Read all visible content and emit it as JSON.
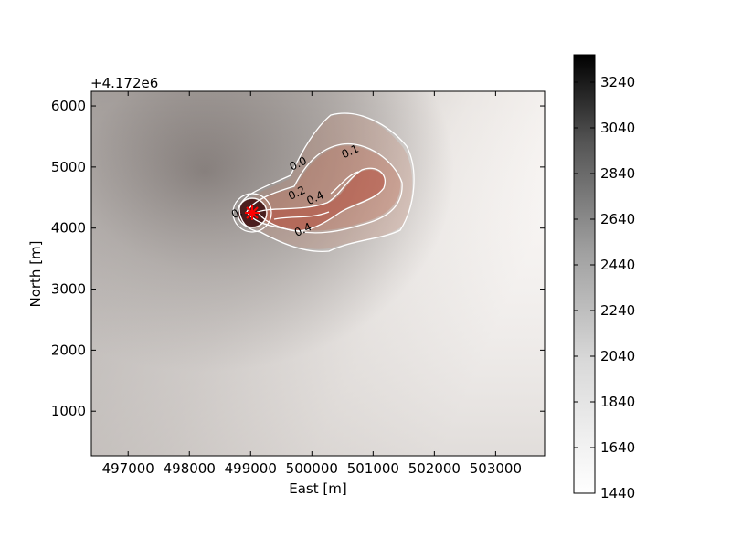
{
  "chart_data": {
    "type": "heatmap",
    "title": "",
    "xlabel": "East [m]",
    "ylabel": "North [m]",
    "y_offset_label": "+4.172e6",
    "xlim": [
      496400,
      503800
    ],
    "ylim": [
      270,
      6240
    ],
    "x_ticks": [
      497000,
      498000,
      499000,
      500000,
      501000,
      502000,
      503000
    ],
    "x_tick_labels": [
      "497000",
      "498000",
      "499000",
      "500000",
      "501000",
      "502000",
      "503000"
    ],
    "y_ticks": [
      1000,
      2000,
      3000,
      4000,
      5000,
      6000
    ],
    "y_tick_labels": [
      "1000",
      "2000",
      "3000",
      "4000",
      "5000",
      "6000"
    ],
    "colorbar": {
      "colormap": "gray_r",
      "min": 1440,
      "max": 3360,
      "ticks": [
        1440,
        1640,
        1840,
        2040,
        2240,
        2440,
        2640,
        2840,
        3040,
        3240
      ],
      "tick_labels": [
        "1440",
        "1640",
        "1840",
        "2040",
        "2240",
        "2440",
        "2640",
        "2840",
        "3040",
        "3240"
      ]
    },
    "overlay": {
      "fill_color": "#b4412e",
      "contour_color": "#ffffff",
      "vent": {
        "x": 499050,
        "y": 4240,
        "marker_color": "#ff0000"
      },
      "contour_labels": [
        {
          "text": "0.0",
          "x": 499800,
          "y": 5000
        },
        {
          "text": "0.1",
          "x": 500650,
          "y": 5200
        },
        {
          "text": "0.2",
          "x": 499780,
          "y": 4520
        },
        {
          "text": "0.4",
          "x": 500080,
          "y": 4440
        },
        {
          "text": "0.4",
          "x": 499880,
          "y": 3920
        },
        {
          "text": "0.",
          "x": 498800,
          "y": 4190
        }
      ]
    }
  }
}
